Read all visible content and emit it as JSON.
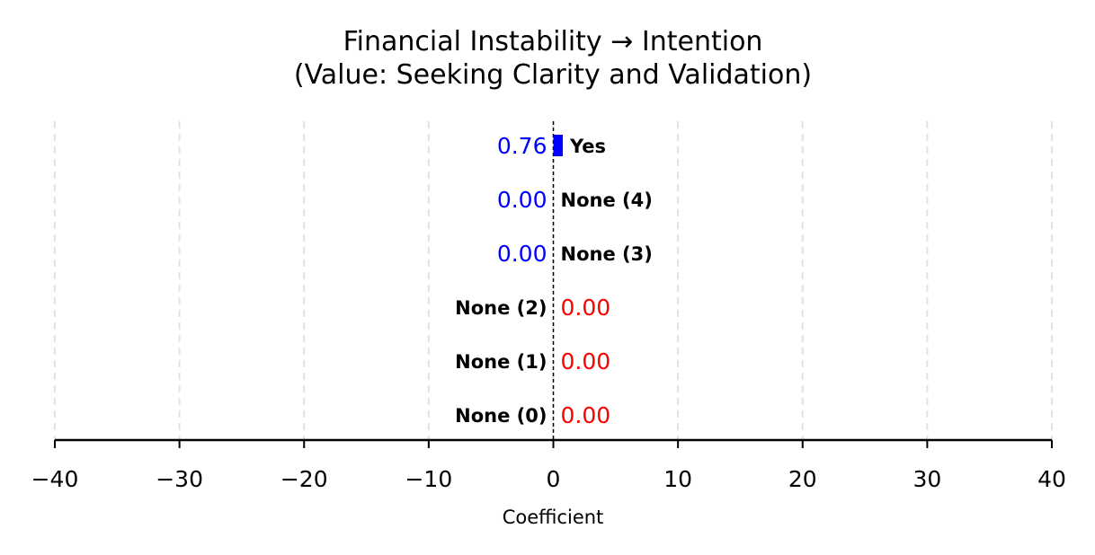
{
  "chart_data": {
    "type": "bar",
    "orientation": "horizontal",
    "title": "Financial Instability → Intention",
    "subtitle": "(Value: Seeking Clarity and Validation)",
    "xlabel": "Coefficient",
    "ylabel": "",
    "xlim": [
      -40,
      40
    ],
    "x_ticks": [
      -40,
      -30,
      -20,
      -10,
      0,
      10,
      20,
      30,
      40
    ],
    "x_tick_labels": [
      "−40",
      "−30",
      "−20",
      "−10",
      "0",
      "10",
      "20",
      "30",
      "40"
    ],
    "grid": "vertical dashed",
    "categories": [
      "Yes",
      "None (4)",
      "None (3)",
      "None (2)",
      "None (1)",
      "None (0)"
    ],
    "values": [
      0.76,
      0.0,
      0.0,
      0.0,
      0.0,
      0.0
    ],
    "value_labels": [
      "0.76",
      "0.00",
      "0.00",
      "0.00",
      "0.00",
      "0.00"
    ],
    "value_label_colors": [
      "#0000ff",
      "#0000ff",
      "#0000ff",
      "#ff0000",
      "#ff0000",
      "#ff0000"
    ],
    "label_side": [
      "right",
      "right",
      "right",
      "left",
      "left",
      "left"
    ],
    "bar_color": "#0000ff",
    "zero_line": "dashed"
  }
}
